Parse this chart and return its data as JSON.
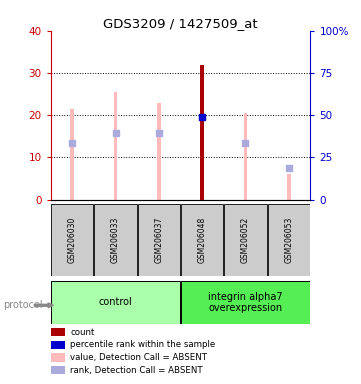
{
  "title": "GDS3209 / 1427509_at",
  "samples": [
    "GSM206030",
    "GSM206033",
    "GSM206037",
    "GSM206048",
    "GSM206052",
    "GSM206053"
  ],
  "groups": [
    {
      "name": "control",
      "indices": [
        0,
        1,
        2
      ],
      "color": "#aaffaa"
    },
    {
      "name": "integrin alpha7\noverexpression",
      "indices": [
        3,
        4,
        5
      ],
      "color": "#55ee55"
    }
  ],
  "value_bars": [
    21.5,
    25.5,
    23.0,
    32.0,
    20.5,
    6.0
  ],
  "rank_marks": [
    13.5,
    15.8,
    15.8,
    19.5,
    13.5,
    7.5
  ],
  "value_color": "#ffbbbb",
  "rank_color": "#aaaadd",
  "count_bar_idx": 3,
  "count_bar_height": 32.0,
  "count_bar_color": "#aa0000",
  "percentile_mark_idx": 3,
  "percentile_mark_val": 19.5,
  "percentile_mark_color": "#0000cc",
  "ylim_left": [
    0,
    40
  ],
  "ylim_right": [
    0,
    100
  ],
  "yticks_left": [
    0,
    10,
    20,
    30,
    40
  ],
  "yticks_right": [
    0,
    25,
    50,
    75,
    100
  ],
  "yticklabels_right": [
    "0",
    "25",
    "50",
    "75",
    "100%"
  ],
  "left_tick_color": "#cc0000",
  "right_tick_color": "#0000cc",
  "legend_items": [
    {
      "label": "count",
      "color": "#aa0000"
    },
    {
      "label": "percentile rank within the sample",
      "color": "#0000cc"
    },
    {
      "label": "value, Detection Call = ABSENT",
      "color": "#ffbbbb"
    },
    {
      "label": "rank, Detection Call = ABSENT",
      "color": "#aaaadd"
    }
  ],
  "protocol_label": "protocol",
  "background_color": "#ffffff",
  "label_box_color": "#cccccc"
}
